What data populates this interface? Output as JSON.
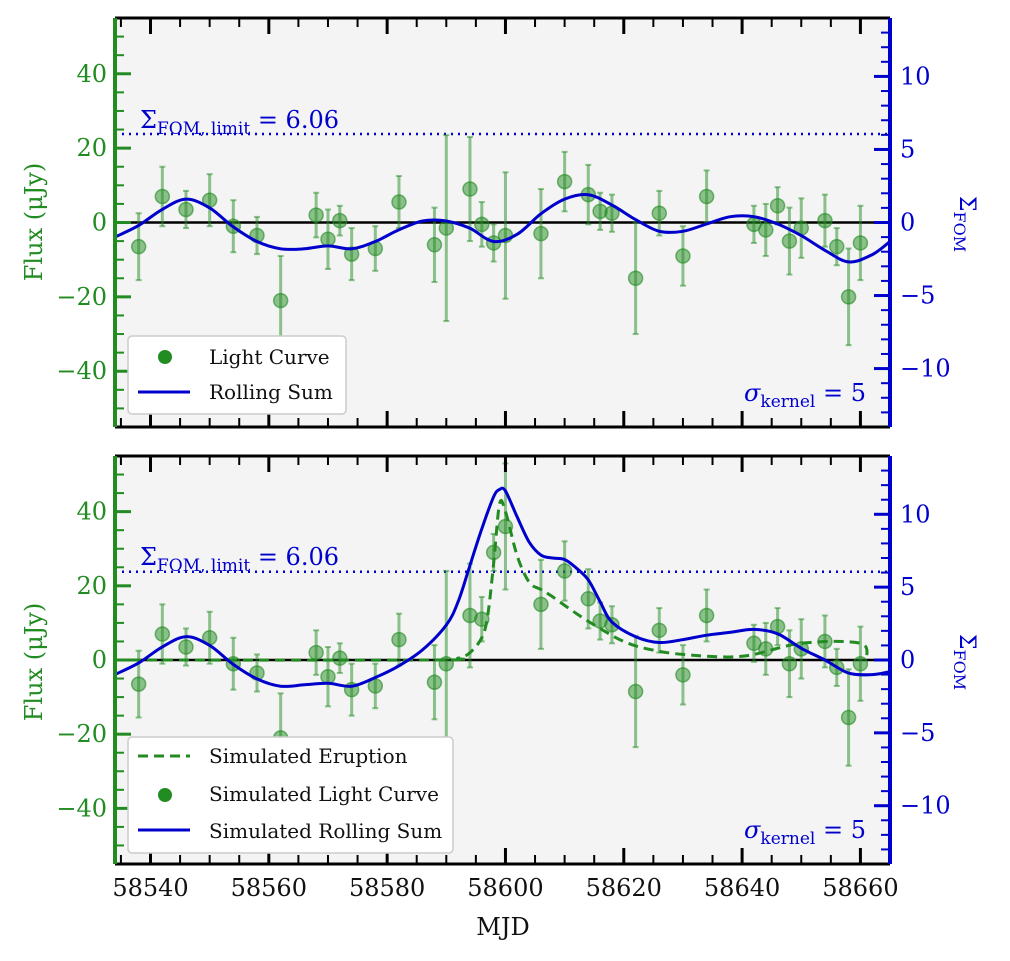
{
  "colors": {
    "green": "#228b22",
    "blue": "#0000cc",
    "panel_bg": "#f4f4f4",
    "zero_line": "#000000",
    "legend_bg": "#ffffff"
  },
  "chart_data": [
    {
      "type": "scatter",
      "panel": "top",
      "xlim": [
        58534,
        58665
      ],
      "ylim": [
        -55,
        55
      ],
      "y2lim": [
        -14,
        14
      ],
      "ylabel": "Flux (μJy)",
      "y2label": "Σ_FOM",
      "y2label_main": "Σ",
      "y2label_sub": "FOM",
      "y_ticks": [
        40,
        20,
        0,
        -20,
        -40
      ],
      "y_tick_labels": [
        "40",
        "20",
        "0",
        "−20",
        "−40"
      ],
      "y2_ticks": [
        10,
        5,
        0,
        -5,
        -10
      ],
      "y2_tick_labels": [
        "10",
        "5",
        "0",
        "−5",
        "−10"
      ],
      "limit_value": 6.06,
      "limit_label_main": "Σ",
      "limit_label_sub": "FOM, limit",
      "limit_label_value": " = 6.06",
      "kernel_label_main": "σ",
      "kernel_label_sub": "kernel",
      "kernel_label_value": " = 5",
      "legend": [
        "Light Curve",
        "Rolling Sum"
      ],
      "light_curve": [
        {
          "x": 58538,
          "y": -6.5,
          "err": 9
        },
        {
          "x": 58542,
          "y": 7,
          "err": 8
        },
        {
          "x": 58546,
          "y": 3.5,
          "err": 5
        },
        {
          "x": 58550,
          "y": 6,
          "err": 7
        },
        {
          "x": 58554,
          "y": -1,
          "err": 7
        },
        {
          "x": 58558,
          "y": -3.5,
          "err": 5
        },
        {
          "x": 58562,
          "y": -21,
          "err": 12
        },
        {
          "x": 58568,
          "y": 2,
          "err": 6
        },
        {
          "x": 58570,
          "y": -4.5,
          "err": 8
        },
        {
          "x": 58572,
          "y": 0.5,
          "err": 4
        },
        {
          "x": 58574,
          "y": -8.5,
          "err": 7
        },
        {
          "x": 58578,
          "y": -7,
          "err": 6
        },
        {
          "x": 58582,
          "y": 5.5,
          "err": 7
        },
        {
          "x": 58588,
          "y": -6,
          "err": 10
        },
        {
          "x": 58590,
          "y": -1.5,
          "err": 25
        },
        {
          "x": 58594,
          "y": 9,
          "err": 14
        },
        {
          "x": 58596,
          "y": -0.5,
          "err": 6
        },
        {
          "x": 58598,
          "y": -5.5,
          "err": 5
        },
        {
          "x": 58600,
          "y": -3.5,
          "err": 17
        },
        {
          "x": 58606,
          "y": -3,
          "err": 12
        },
        {
          "x": 58610,
          "y": 11,
          "err": 8
        },
        {
          "x": 58614,
          "y": 7.5,
          "err": 8
        },
        {
          "x": 58616,
          "y": 3,
          "err": 5
        },
        {
          "x": 58618,
          "y": 2.5,
          "err": 5
        },
        {
          "x": 58622,
          "y": -15,
          "err": 15
        },
        {
          "x": 58626,
          "y": 2.5,
          "err": 6
        },
        {
          "x": 58630,
          "y": -9,
          "err": 8
        },
        {
          "x": 58634,
          "y": 7,
          "err": 7
        },
        {
          "x": 58642,
          "y": -0.5,
          "err": 5
        },
        {
          "x": 58644,
          "y": -2,
          "err": 7
        },
        {
          "x": 58646,
          "y": 4.5,
          "err": 5
        },
        {
          "x": 58648,
          "y": -5,
          "err": 9
        },
        {
          "x": 58650,
          "y": -1.5,
          "err": 8
        },
        {
          "x": 58654,
          "y": 0.5,
          "err": 7
        },
        {
          "x": 58656,
          "y": -6.5,
          "err": 5
        },
        {
          "x": 58658,
          "y": -20,
          "err": 13
        },
        {
          "x": 58660,
          "y": -5.5,
          "err": 10
        }
      ],
      "rolling_sum": {
        "x": [
          58534,
          58538,
          58542,
          58546,
          58550,
          58554,
          58558,
          58562,
          58566,
          58570,
          58574,
          58578,
          58582,
          58586,
          58590,
          58594,
          58598,
          58602,
          58606,
          58610,
          58614,
          58618,
          58622,
          58626,
          58630,
          58634,
          58638,
          58642,
          58646,
          58650,
          58654,
          58658,
          58662,
          58665
        ],
        "y": [
          -1.0,
          -0.2,
          0.9,
          1.6,
          1.0,
          -0.3,
          -1.3,
          -1.8,
          -1.8,
          -1.6,
          -1.8,
          -1.3,
          -0.5,
          0.1,
          0.1,
          -0.4,
          -1.3,
          -0.8,
          0.6,
          1.6,
          1.9,
          1.2,
          0.2,
          -0.6,
          -0.6,
          -0.1,
          0.4,
          0.4,
          -0.1,
          -0.9,
          -1.9,
          -2.7,
          -2.2,
          -1.3
        ]
      }
    },
    {
      "type": "scatter",
      "panel": "bottom",
      "xlim": [
        58534,
        58665
      ],
      "ylim": [
        -55,
        55
      ],
      "y2lim": [
        -14,
        14
      ],
      "xlabel": "MJD",
      "x_ticks": [
        58540,
        58560,
        58580,
        58600,
        58620,
        58640,
        58660
      ],
      "x_tick_labels": [
        "58540",
        "58560",
        "58580",
        "58600",
        "58620",
        "58640",
        "58660"
      ],
      "ylabel": "Flux (μJy)",
      "y2label": "Σ_FOM",
      "y2label_main": "Σ",
      "y2label_sub": "FOM",
      "y_ticks": [
        40,
        20,
        0,
        -20,
        -40
      ],
      "y_tick_labels": [
        "40",
        "20",
        "0",
        "−20",
        "−40"
      ],
      "y2_ticks": [
        10,
        5,
        0,
        -5,
        -10
      ],
      "y2_tick_labels": [
        "10",
        "5",
        "0",
        "−5",
        "−10"
      ],
      "limit_value": 6.06,
      "limit_label_main": "Σ",
      "limit_label_sub": "FOM, limit",
      "limit_label_value": " = 6.06",
      "kernel_label_main": "σ",
      "kernel_label_sub": "kernel",
      "kernel_label_value": " = 5",
      "legend": [
        "Simulated Eruption",
        "Simulated Light Curve",
        "Simulated Rolling Sum"
      ],
      "light_curve": [
        {
          "x": 58538,
          "y": -6.5,
          "err": 9
        },
        {
          "x": 58542,
          "y": 7,
          "err": 8
        },
        {
          "x": 58546,
          "y": 3.5,
          "err": 5
        },
        {
          "x": 58550,
          "y": 6,
          "err": 7
        },
        {
          "x": 58554,
          "y": -1,
          "err": 7
        },
        {
          "x": 58558,
          "y": -3.5,
          "err": 5
        },
        {
          "x": 58562,
          "y": -21,
          "err": 12
        },
        {
          "x": 58568,
          "y": 2,
          "err": 6
        },
        {
          "x": 58570,
          "y": -4.5,
          "err": 8
        },
        {
          "x": 58572,
          "y": 0.5,
          "err": 4
        },
        {
          "x": 58574,
          "y": -8,
          "err": 7
        },
        {
          "x": 58578,
          "y": -7,
          "err": 6
        },
        {
          "x": 58582,
          "y": 5.5,
          "err": 7
        },
        {
          "x": 58588,
          "y": -6,
          "err": 10
        },
        {
          "x": 58590,
          "y": -1,
          "err": 25
        },
        {
          "x": 58594,
          "y": 12,
          "err": 14
        },
        {
          "x": 58596,
          "y": 11,
          "err": 6
        },
        {
          "x": 58598,
          "y": 29,
          "err": 5
        },
        {
          "x": 58600,
          "y": 36,
          "err": 17
        },
        {
          "x": 58606,
          "y": 15,
          "err": 12
        },
        {
          "x": 58610,
          "y": 24,
          "err": 8
        },
        {
          "x": 58614,
          "y": 16.5,
          "err": 8
        },
        {
          "x": 58616,
          "y": 10.5,
          "err": 5
        },
        {
          "x": 58618,
          "y": 9.5,
          "err": 5
        },
        {
          "x": 58622,
          "y": -8.5,
          "err": 15
        },
        {
          "x": 58626,
          "y": 8,
          "err": 6
        },
        {
          "x": 58630,
          "y": -4,
          "err": 8
        },
        {
          "x": 58634,
          "y": 12,
          "err": 7
        },
        {
          "x": 58642,
          "y": 4.5,
          "err": 5
        },
        {
          "x": 58644,
          "y": 3,
          "err": 7
        },
        {
          "x": 58646,
          "y": 9,
          "err": 5
        },
        {
          "x": 58648,
          "y": -1,
          "err": 9
        },
        {
          "x": 58650,
          "y": 3,
          "err": 8
        },
        {
          "x": 58654,
          "y": 5,
          "err": 7
        },
        {
          "x": 58656,
          "y": -2,
          "err": 5
        },
        {
          "x": 58658,
          "y": -15.5,
          "err": 13
        },
        {
          "x": 58660,
          "y": -1,
          "err": 10
        }
      ],
      "simulated_eruption": {
        "x": [
          58534,
          58588,
          58592,
          58594,
          58596,
          58597,
          58598,
          58599,
          58600,
          58602,
          58604,
          58606,
          58608,
          58612,
          58616,
          58620,
          58624,
          58630,
          58640,
          58650,
          58660,
          58661
        ],
        "y": [
          0,
          0,
          0.5,
          2,
          6,
          12,
          26,
          42,
          40,
          28,
          21,
          19,
          17,
          12.5,
          8.5,
          5,
          3,
          1.5,
          1,
          4.5,
          4.5,
          0
        ]
      },
      "rolling_sum": {
        "x": [
          58534,
          58538,
          58542,
          58546,
          58550,
          58554,
          58558,
          58562,
          58566,
          58570,
          58574,
          58578,
          58582,
          58586,
          58590,
          58592,
          58594,
          58596,
          58598,
          58599,
          58600,
          58602,
          58604,
          58606,
          58608,
          58610,
          58612,
          58614,
          58616,
          58618,
          58622,
          58626,
          58630,
          58634,
          58638,
          58642,
          58646,
          58650,
          58654,
          58658,
          58662,
          58665
        ],
        "y": [
          -1.0,
          -0.2,
          0.9,
          1.6,
          1.0,
          -0.3,
          -1.3,
          -1.8,
          -1.7,
          -1.6,
          -1.8,
          -1.2,
          -0.4,
          0.7,
          2.4,
          4.0,
          6.5,
          9.0,
          11.2,
          11.7,
          11.6,
          9.8,
          8.1,
          7.2,
          7.0,
          6.9,
          6.3,
          5.5,
          4.0,
          2.6,
          1.6,
          1.2,
          1.4,
          1.7,
          1.9,
          2.1,
          1.8,
          0.8,
          0.0,
          -0.9,
          -1.0,
          -0.8
        ]
      }
    }
  ]
}
